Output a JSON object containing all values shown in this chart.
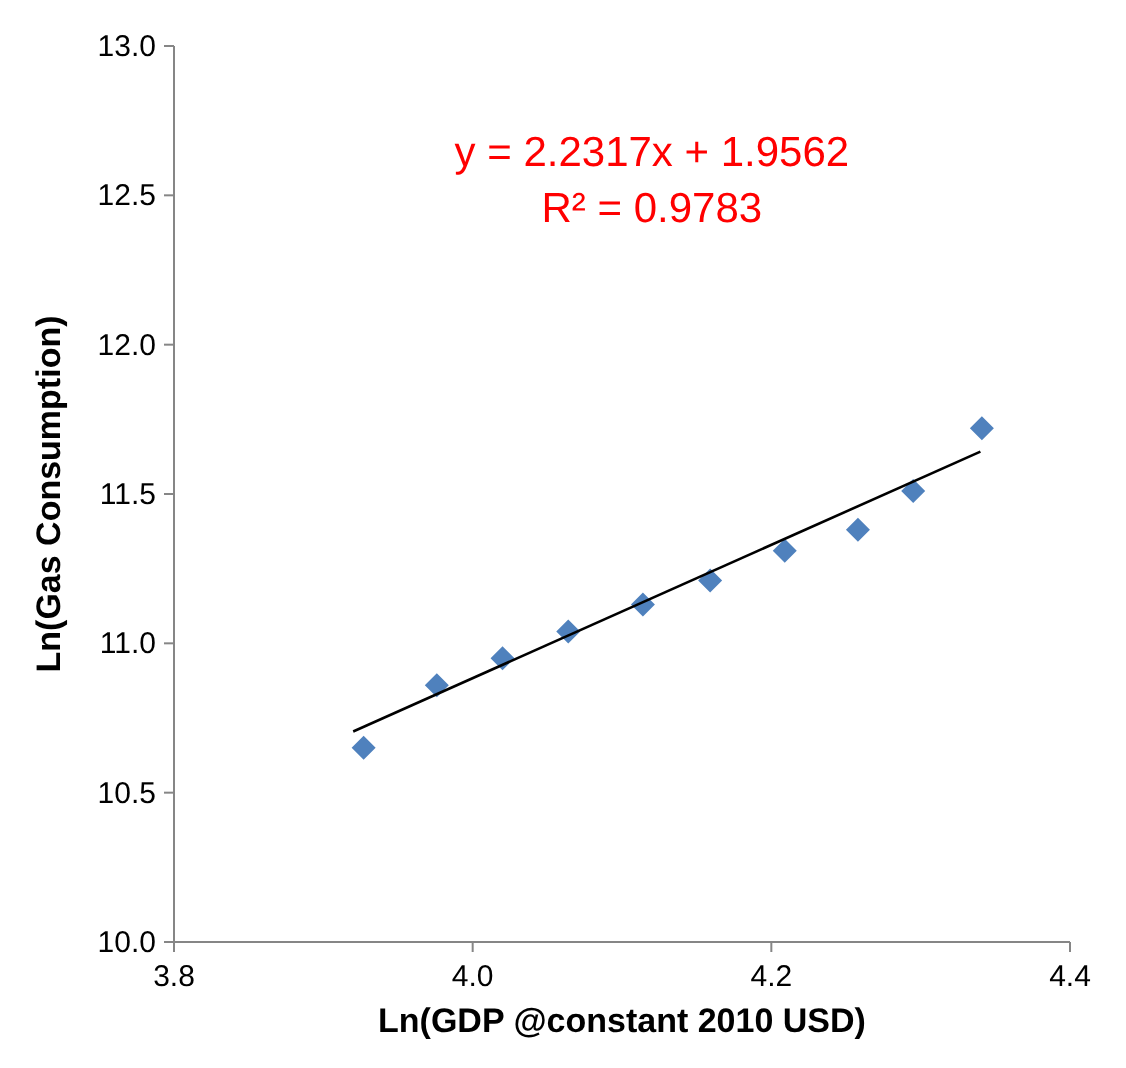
{
  "chart_data": {
    "type": "scatter",
    "xlabel": "Ln(GDP @constant 2010 USD)",
    "ylabel": "Ln(Gas Consumption)",
    "x": [
      3.927,
      3.976,
      4.02,
      4.064,
      4.114,
      4.159,
      4.209,
      4.258,
      4.295,
      4.341
    ],
    "series": [
      {
        "color": "#4f81bd",
        "marker": "diamond",
        "values": [
          10.65,
          10.86,
          10.95,
          11.04,
          11.13,
          11.21,
          11.31,
          11.38,
          11.51,
          11.72
        ]
      },
      {
        "type": "line",
        "color": "#000000",
        "marker": "none",
        "x": [
          3.92,
          4.34
        ],
        "values": [
          10.705,
          11.642
        ]
      }
    ],
    "annotations": [
      "y = 2.2317x + 1.9562",
      "R² = 0.9783"
    ],
    "xlim": [
      3.8,
      4.4
    ],
    "xticks": [
      {
        "value": 3.8,
        "label": "3.8"
      },
      {
        "value": 4.0,
        "label": "4.0"
      },
      {
        "value": 4.2,
        "label": "4.2"
      },
      {
        "value": 4.4,
        "label": "4.4"
      }
    ],
    "ylim": [
      10.0,
      13.0
    ],
    "yticks": [
      {
        "value": 10,
        "label": "10.0"
      },
      {
        "value": 10.5,
        "label": "10.5"
      },
      {
        "value": 11,
        "label": "11.0"
      },
      {
        "value": 11.5,
        "label": "11.5"
      },
      {
        "value": 12,
        "label": "12.0"
      },
      {
        "value": 12.5,
        "label": "12.5"
      },
      {
        "value": 13,
        "label": "13.0"
      }
    ],
    "grid": false
  }
}
